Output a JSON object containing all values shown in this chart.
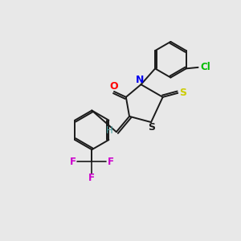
{
  "background_color": "#e8e8e8",
  "bond_color": "#1a1a1a",
  "atom_colors": {
    "O": "#ff0000",
    "N": "#0000ee",
    "S_thione": "#cccc00",
    "S_ring": "#1a1a1a",
    "Cl": "#00bb00",
    "F": "#cc00cc",
    "H": "#4aa0a0",
    "C": "#1a1a1a"
  },
  "figsize": [
    3.0,
    3.0
  ],
  "dpi": 100
}
